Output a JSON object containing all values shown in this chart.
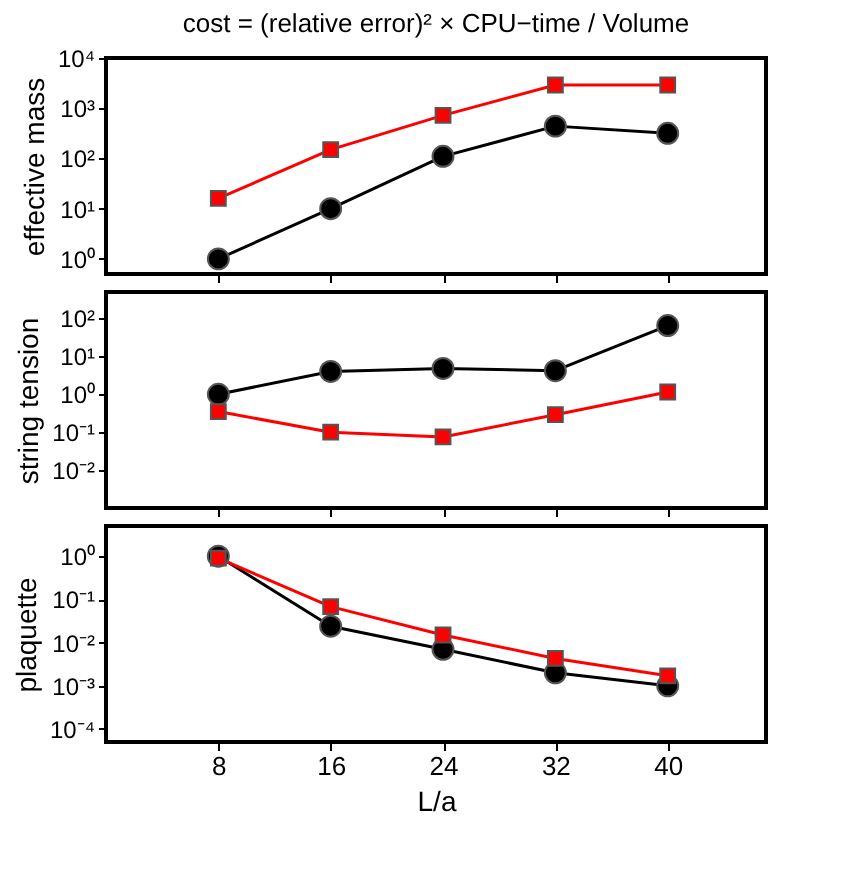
{
  "chart_data": [
    {
      "type": "line",
      "title": "cost = (relative error)² × CPU−time / Volume",
      "ylabel": "effective mass",
      "log": "y",
      "grid": false,
      "tick_labels": "y",
      "x": [
        8,
        16,
        24,
        32,
        40
      ],
      "xlim": [
        0,
        47
      ],
      "xticks": [
        8,
        16,
        24,
        32,
        40
      ],
      "ylim": [
        0.5,
        10000
      ],
      "yticks": [
        {
          "value": 1,
          "label": "10⁰"
        },
        {
          "value": 10,
          "label": "10¹"
        },
        {
          "value": 100,
          "label": "10²"
        },
        {
          "value": 1000,
          "label": "10³"
        },
        {
          "value": 10000,
          "label": "10⁴"
        }
      ],
      "series": [
        {
          "color": "#000000",
          "marker": "circle",
          "values": [
            1,
            10,
            110,
            440,
            316
          ]
        },
        {
          "color": "#ff0000",
          "marker": "square",
          "values": [
            16,
            150,
            720,
            2900,
            2900
          ]
        }
      ]
    },
    {
      "type": "line",
      "ylabel": "string tension",
      "log": "y",
      "grid": false,
      "tick_labels": "y",
      "x": [
        8,
        16,
        24,
        32,
        40
      ],
      "xlim": [
        0,
        47
      ],
      "xticks": [
        8,
        16,
        24,
        32,
        40
      ],
      "ylim": [
        0.001,
        500
      ],
      "yticks": [
        {
          "value": 0.01,
          "label": "10⁻²"
        },
        {
          "value": 0.1,
          "label": "10⁻¹"
        },
        {
          "value": 1,
          "label": "10⁰"
        },
        {
          "value": 10,
          "label": "10¹"
        },
        {
          "value": 100,
          "label": "10²"
        }
      ],
      "series": [
        {
          "color": "#000000",
          "marker": "circle",
          "values": [
            1,
            4,
            4.8,
            4.2,
            65
          ]
        },
        {
          "color": "#ff0000",
          "marker": "square",
          "values": [
            0.35,
            0.1,
            0.075,
            0.29,
            1.15
          ]
        }
      ]
    },
    {
      "type": "line",
      "ylabel": "plaquette",
      "xlabel": "L/a",
      "log": "y",
      "grid": false,
      "x": [
        8,
        16,
        24,
        32,
        40
      ],
      "xlim": [
        0,
        47
      ],
      "xticks": [
        8,
        16,
        24,
        32,
        40
      ],
      "ylim": [
        5e-05,
        5
      ],
      "yticks": [
        {
          "value": 0.0001,
          "label": "10⁻⁴"
        },
        {
          "value": 0.001,
          "label": "10⁻³"
        },
        {
          "value": 0.01,
          "label": "10⁻²"
        },
        {
          "value": 0.1,
          "label": "10⁻¹"
        },
        {
          "value": 1,
          "label": "10⁰"
        }
      ],
      "series": [
        {
          "color": "#000000",
          "marker": "circle",
          "values": [
            1,
            0.024,
            0.007,
            0.002,
            0.001
          ]
        },
        {
          "color": "#ff0000",
          "marker": "square",
          "values": [
            0.9,
            0.068,
            0.015,
            0.0043,
            0.0017
          ]
        }
      ]
    }
  ]
}
